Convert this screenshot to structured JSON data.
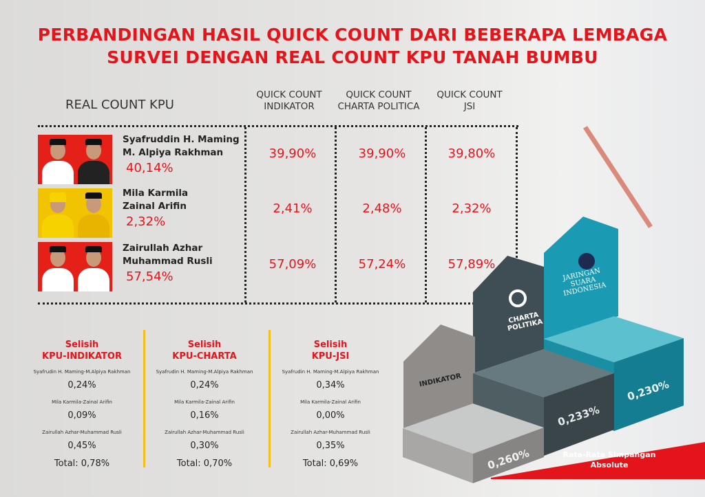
{
  "title": {
    "line1": "PERBANDINGAN HASIL QUICK COUNT DARI BEBERAPA LEMBAGA",
    "line2": "SURVEI DENGAN REAL COUNT KPU TANAH BUMBU"
  },
  "headers": {
    "real_count": "REAL COUNT KPU",
    "qc": [
      {
        "l1": "QUICK COUNT",
        "l2": "INDIKATOR"
      },
      {
        "l1": "QUICK COUNT",
        "l2": "CHARTA POLITICA"
      },
      {
        "l1": "QUICK COUNT",
        "l2": "JSI"
      }
    ]
  },
  "rows": [
    {
      "name1": "Syafruddin H. Maming",
      "name2": "M. Alpiya Rakhman",
      "kpu": "40,14%",
      "qc": [
        "39,90%",
        "39,90%",
        "39,80%"
      ]
    },
    {
      "name1": "Mila Karmila",
      "name2": "Zainal Arifin",
      "kpu": "2,32%",
      "qc": [
        "2,41%",
        "2,48%",
        "2,32%"
      ]
    },
    {
      "name1": "Zairullah Azhar",
      "name2": "Muhammad Rusli",
      "kpu": "57,54%",
      "qc": [
        "57,09%",
        "57,24%",
        "57,89%"
      ]
    }
  ],
  "selisih": [
    {
      "l1": "Selisih",
      "l2": "KPU-INDIKATOR",
      "items": [
        {
          "n": "Syafrudin H. Maming-M.Alpiya Rakhman",
          "v": "0,24%"
        },
        {
          "n": "Mila Karmila-Zainal Arifin",
          "v": "0,09%"
        },
        {
          "n": "Zairullah Azhar-Muhammad Rusli",
          "v": "0,45%"
        }
      ],
      "total": "Total:  0,78%"
    },
    {
      "l1": "Selisih",
      "l2": "KPU-CHARTA",
      "items": [
        {
          "n": "Syafrudin H. Maming-M.Alpiya Rakhman",
          "v": "0,24%"
        },
        {
          "n": "Mila Karmila-Zainal Arifin",
          "v": "0,16%"
        },
        {
          "n": "Zairullah Azhar-Muhammad Rusli",
          "v": "0,30%"
        }
      ],
      "total": "Total:  0,70%"
    },
    {
      "l1": "Selisih",
      "l2": "KPU-JSI",
      "items": [
        {
          "n": "Syafrudin H. Maming-M.Alpiya Rakhman",
          "v": "0,34%"
        },
        {
          "n": "Mila Karmila-Zainal Arifin",
          "v": "0,00%"
        },
        {
          "n": "Zairullah Azhar-Muhammad Rusli",
          "v": "0,35%"
        }
      ],
      "total": "Total:  0,69%"
    }
  ],
  "podium": {
    "indikator": {
      "logo": "INDIKATOR",
      "value": "0,260%"
    },
    "charta": {
      "logo1": "CHARTA",
      "logo2": "POLITIKA",
      "value": "0,233%"
    },
    "jsi": {
      "logo1": "JARINGAN",
      "logo2": "SUARA",
      "logo3": "INDONESIA",
      "value": "0,230%"
    },
    "ribbon1": "Rata-Rata Simpangan",
    "ribbon2": "Absolute"
  },
  "colors": {
    "accent": "#e4141b",
    "divider": "#f3c01b",
    "jsi": "#1a8ea3",
    "charta": "#3c4a4f",
    "indikator": "#8a8886"
  }
}
